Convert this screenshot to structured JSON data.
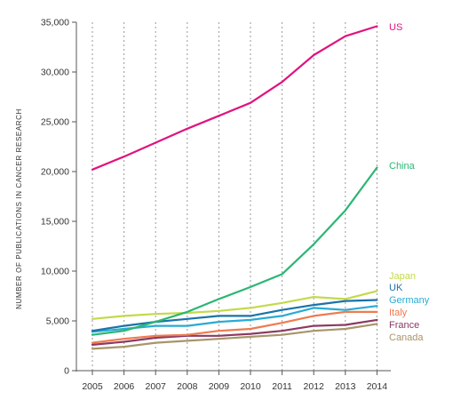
{
  "chart_data": {
    "type": "line",
    "title": "",
    "xlabel": "",
    "ylabel": "NUMBER OF PUBLICATIONS IN CANCER RESEARCH",
    "x": [
      2005,
      2006,
      2007,
      2008,
      2009,
      2010,
      2011,
      2012,
      2013,
      2014
    ],
    "ylim": [
      0,
      35000
    ],
    "yticks": [
      0,
      5000,
      10000,
      15000,
      20000,
      25000,
      30000,
      35000
    ],
    "ytick_labels": [
      "0",
      "5,000",
      "10,000",
      "15,000",
      "20,000",
      "25,000",
      "30,000",
      "35,000"
    ],
    "grid": "vertical dashed",
    "legend": "direct labels at line ends (right)",
    "series": [
      {
        "name": "US",
        "color": "#e0137f",
        "values": [
          20200,
          21500,
          22900,
          24300,
          25600,
          26900,
          29000,
          31700,
          33600,
          34600
        ]
      },
      {
        "name": "China",
        "color": "#2bb673",
        "values": [
          3600,
          4000,
          4900,
          5900,
          7200,
          8400,
          9700,
          12700,
          16100,
          20400
        ]
      },
      {
        "name": "Japan",
        "color": "#c4d94a",
        "values": [
          5200,
          5500,
          5700,
          5800,
          6000,
          6300,
          6800,
          7400,
          7200,
          8000
        ]
      },
      {
        "name": "UK",
        "color": "#1a73a8",
        "values": [
          4000,
          4500,
          4900,
          5200,
          5500,
          5500,
          6100,
          6600,
          7000,
          7100
        ]
      },
      {
        "name": "Germany",
        "color": "#29abd4",
        "values": [
          3900,
          4200,
          4500,
          4500,
          4900,
          5100,
          5500,
          6300,
          6100,
          6500
        ]
      },
      {
        "name": "Italy",
        "color": "#ef7b4f",
        "values": [
          2800,
          3200,
          3500,
          3600,
          4000,
          4200,
          4800,
          5500,
          5900,
          5900
        ]
      },
      {
        "name": "France",
        "color": "#8b3a62",
        "values": [
          2600,
          2900,
          3300,
          3500,
          3500,
          3700,
          4000,
          4500,
          4600,
          5100
        ]
      },
      {
        "name": "Canada",
        "color": "#a8956a",
        "values": [
          2200,
          2400,
          2800,
          3000,
          3200,
          3400,
          3600,
          4000,
          4200,
          4700
        ]
      }
    ]
  }
}
